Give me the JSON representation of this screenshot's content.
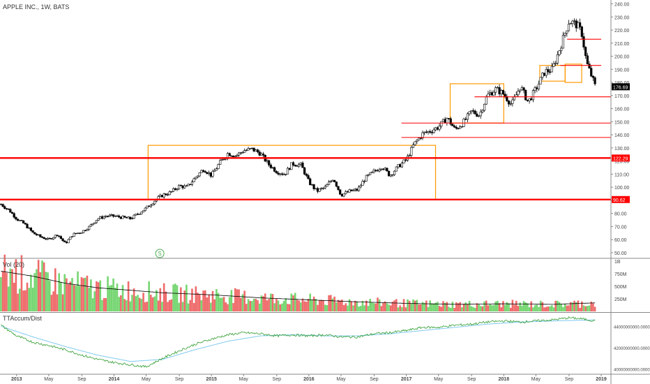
{
  "title": "APPLE INC., 1W, BATS",
  "vol_label": "Vol (20)",
  "tt_label": "TTAccum/Dist",
  "colors": {
    "up": "#ffffff",
    "down": "#000000",
    "line": "#000000",
    "sr": "#ff0000",
    "box": "#ff9800",
    "vol_up": "#76d672",
    "vol_down": "#ef6b6b",
    "vol_ma": "#000000",
    "tt": "#2e9c2e",
    "tt_ma": "#7ec9ee",
    "badge": "#ff0000",
    "price_badge": "#000000"
  },
  "chart_data": [
    {
      "type": "candlestick",
      "title": "APPLE INC., 1W, BATS",
      "ylim": [
        45,
        240
      ],
      "y_ticks": [
        "240.00",
        "230.00",
        "220.00",
        "210.00",
        "200.00",
        "190.00",
        "180.00",
        "170.00",
        "160.00",
        "150.00",
        "140.00",
        "130.00",
        "120.00",
        "110.00",
        "100.00",
        "90.00",
        "80.00",
        "70.00",
        "60.00",
        "50.00"
      ],
      "y_tick_values": [
        240,
        230,
        220,
        210,
        200,
        190,
        180,
        170,
        160,
        150,
        140,
        130,
        120,
        110,
        100,
        90,
        80,
        70,
        60,
        50
      ],
      "x_ticks": [
        "2013",
        "May",
        "Sep",
        "2014",
        "May",
        "Sep",
        "2015",
        "May",
        "Sep",
        "2016",
        "May",
        "Sep",
        "2017",
        "May",
        "Sep",
        "2018",
        "May",
        "Sep",
        "2019"
      ],
      "x_tick_dates": [
        2013.0,
        2013.33,
        2013.67,
        2014.0,
        2014.33,
        2014.67,
        2015.0,
        2015.33,
        2015.67,
        2016.0,
        2016.33,
        2016.67,
        2017.0,
        2017.33,
        2017.67,
        2018.0,
        2018.33,
        2018.67,
        2019.0
      ],
      "xlim": [
        2012.83,
        2019.1
      ],
      "price_path": [
        [
          2012.84,
          87
        ],
        [
          2012.93,
          82
        ],
        [
          2013.0,
          76
        ],
        [
          2013.08,
          72
        ],
        [
          2013.17,
          65
        ],
        [
          2013.25,
          62
        ],
        [
          2013.33,
          60
        ],
        [
          2013.42,
          64
        ],
        [
          2013.5,
          57
        ],
        [
          2013.58,
          64
        ],
        [
          2013.67,
          66
        ],
        [
          2013.75,
          70
        ],
        [
          2013.83,
          76
        ],
        [
          2013.92,
          78
        ],
        [
          2014.0,
          78
        ],
        [
          2014.08,
          77
        ],
        [
          2014.17,
          76
        ],
        [
          2014.25,
          80
        ],
        [
          2014.33,
          84
        ],
        [
          2014.42,
          90
        ],
        [
          2014.5,
          94
        ],
        [
          2014.58,
          96
        ],
        [
          2014.67,
          101
        ],
        [
          2014.75,
          100
        ],
        [
          2014.83,
          107
        ],
        [
          2014.92,
          114
        ],
        [
          2015.0,
          109
        ],
        [
          2015.08,
          118
        ],
        [
          2015.17,
          126
        ],
        [
          2015.25,
          124
        ],
        [
          2015.33,
          128
        ],
        [
          2015.42,
          129
        ],
        [
          2015.5,
          126
        ],
        [
          2015.58,
          118
        ],
        [
          2015.67,
          112
        ],
        [
          2015.75,
          110
        ],
        [
          2015.83,
          118
        ],
        [
          2015.92,
          117
        ],
        [
          2016.0,
          104
        ],
        [
          2016.08,
          97
        ],
        [
          2016.17,
          100
        ],
        [
          2016.25,
          107
        ],
        [
          2016.33,
          94
        ],
        [
          2016.42,
          97
        ],
        [
          2016.5,
          98
        ],
        [
          2016.58,
          107
        ],
        [
          2016.67,
          112
        ],
        [
          2016.75,
          116
        ],
        [
          2016.83,
          109
        ],
        [
          2016.92,
          116
        ],
        [
          2017.0,
          121
        ],
        [
          2017.08,
          133
        ],
        [
          2017.17,
          141
        ],
        [
          2017.25,
          143
        ],
        [
          2017.33,
          146
        ],
        [
          2017.42,
          153
        ],
        [
          2017.5,
          144
        ],
        [
          2017.58,
          149
        ],
        [
          2017.67,
          158
        ],
        [
          2017.75,
          155
        ],
        [
          2017.83,
          170
        ],
        [
          2017.92,
          175
        ],
        [
          2018.0,
          171
        ],
        [
          2018.08,
          163
        ],
        [
          2018.17,
          177
        ],
        [
          2018.25,
          165
        ],
        [
          2018.33,
          175
        ],
        [
          2018.42,
          188
        ],
        [
          2018.5,
          190
        ],
        [
          2018.58,
          207
        ],
        [
          2018.67,
          227
        ],
        [
          2018.75,
          224
        ],
        [
          2018.8,
          218
        ],
        [
          2018.85,
          195
        ],
        [
          2018.9,
          185
        ],
        [
          2018.94,
          176.69
        ]
      ],
      "boxes": [
        {
          "from": 2014.35,
          "to": 2017.3,
          "low": 90.62,
          "high": 132
        },
        {
          "from": 2017.45,
          "to": 2018.0,
          "low": 149,
          "high": 179
        },
        {
          "from": 2018.37,
          "to": 2018.63,
          "low": 181,
          "high": 193
        },
        {
          "from": 2018.63,
          "to": 2018.8,
          "low": 180,
          "high": 194
        }
      ],
      "levels": [
        {
          "value": 122.29,
          "from": 2012.83,
          "to": 2019.1,
          "badge": "122.29",
          "thick": true
        },
        {
          "value": 90.62,
          "from": 2012.83,
          "to": 2019.1,
          "badge": "90.62",
          "thick": true
        },
        {
          "value": 149,
          "from": 2016.95,
          "to": 2019.1,
          "badge": "",
          "thick": false
        },
        {
          "value": 138,
          "from": 2016.95,
          "to": 2019.1,
          "badge": "",
          "thick": false
        },
        {
          "value": 169,
          "from": 2017.7,
          "to": 2019.1,
          "badge": "",
          "thick": false
        },
        {
          "value": 193,
          "from": 2018.58,
          "to": 2019.0,
          "badge": "",
          "thick": false
        },
        {
          "value": 213,
          "from": 2018.65,
          "to": 2019.0,
          "badge": "",
          "thick": false
        }
      ],
      "last_price": 176.69,
      "last_price_label": "176.69",
      "marker": {
        "date": 2014.47,
        "label": "S"
      }
    },
    {
      "type": "bar",
      "title": "Vol (20)",
      "ylim": [
        0,
        1000000000
      ],
      "y_ticks": [
        "1B",
        "750M",
        "500M",
        "250M"
      ],
      "y_tick_values": [
        1000000000,
        750000000,
        500000000,
        250000000
      ],
      "volume_profile": [
        [
          2012.84,
          800000000
        ],
        [
          2013.17,
          700000000
        ],
        [
          2013.5,
          560000000
        ],
        [
          2013.83,
          470000000
        ],
        [
          2014.17,
          420000000
        ],
        [
          2014.5,
          370000000
        ],
        [
          2015.0,
          330000000
        ],
        [
          2015.5,
          270000000
        ],
        [
          2016.0,
          230000000
        ],
        [
          2016.5,
          190000000
        ],
        [
          2017.0,
          160000000
        ],
        [
          2017.5,
          140000000
        ],
        [
          2018.0,
          150000000
        ],
        [
          2018.5,
          140000000
        ],
        [
          2018.94,
          170000000
        ]
      ]
    },
    {
      "type": "line",
      "title": "TTAccum/Dist",
      "ylim": [
        39700000000,
        45200000000
      ],
      "y_ticks": [
        "44000000000.0000",
        "42000000000.0000",
        "40000000000.0000"
      ],
      "y_tick_values": [
        44000000000,
        42000000000,
        40000000000
      ],
      "series": [
        {
          "values_path": [
            [
              2012.84,
              44100000000
            ],
            [
              2013.0,
              43100000000
            ],
            [
              2013.17,
              42500000000
            ],
            [
              2013.33,
              42200000000
            ],
            [
              2013.5,
              41800000000
            ],
            [
              2013.67,
              41300000000
            ],
            [
              2013.83,
              40900000000
            ],
            [
              2014.0,
              40600000000
            ],
            [
              2014.17,
              40400000000
            ],
            [
              2014.33,
              40200000000
            ],
            [
              2014.5,
              41000000000
            ],
            [
              2014.67,
              41700000000
            ],
            [
              2014.83,
              42300000000
            ],
            [
              2015.0,
              42800000000
            ],
            [
              2015.17,
              43200000000
            ],
            [
              2015.33,
              43400000000
            ],
            [
              2015.5,
              43300000000
            ],
            [
              2015.67,
              43100000000
            ],
            [
              2015.83,
              43200000000
            ],
            [
              2016.0,
              43100000000
            ],
            [
              2016.17,
              43200000000
            ],
            [
              2016.33,
              43000000000
            ],
            [
              2016.5,
              43000000000
            ],
            [
              2016.67,
              43300000000
            ],
            [
              2016.83,
              43400000000
            ],
            [
              2017.0,
              43600000000
            ],
            [
              2017.17,
              43900000000
            ],
            [
              2017.33,
              43900000000
            ],
            [
              2017.5,
              44100000000
            ],
            [
              2017.67,
              44200000000
            ],
            [
              2017.83,
              44400000000
            ],
            [
              2018.0,
              44500000000
            ],
            [
              2018.17,
              44400000000
            ],
            [
              2018.33,
              44500000000
            ],
            [
              2018.5,
              44600000000
            ],
            [
              2018.67,
              44800000000
            ],
            [
              2018.8,
              44700000000
            ],
            [
              2018.94,
              44500000000
            ]
          ]
        },
        {
          "values_path": [
            [
              2012.84,
              44000000000
            ],
            [
              2013.17,
              43000000000
            ],
            [
              2013.5,
              42100000000
            ],
            [
              2013.83,
              41300000000
            ],
            [
              2014.17,
              40700000000
            ],
            [
              2014.5,
              40900000000
            ],
            [
              2014.83,
              41800000000
            ],
            [
              2015.17,
              42600000000
            ],
            [
              2015.5,
              43100000000
            ],
            [
              2015.83,
              43200000000
            ],
            [
              2016.17,
              43100000000
            ],
            [
              2016.5,
              43100000000
            ],
            [
              2016.83,
              43300000000
            ],
            [
              2017.17,
              43600000000
            ],
            [
              2017.5,
              43900000000
            ],
            [
              2017.83,
              44200000000
            ],
            [
              2018.17,
              44400000000
            ],
            [
              2018.5,
              44500000000
            ],
            [
              2018.94,
              44600000000
            ]
          ]
        }
      ]
    }
  ]
}
